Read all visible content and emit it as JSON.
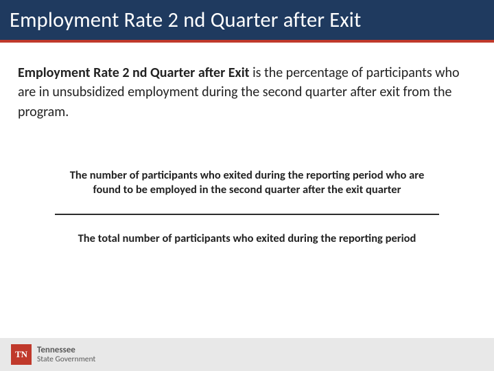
{
  "header": {
    "title": "Employment Rate 2 nd Quarter after Exit",
    "background_color": "#1f3a5f",
    "accent_color": "#c0392b",
    "title_color": "#ffffff",
    "title_fontsize": 30.5
  },
  "definition": {
    "bold_term": "Employment Rate 2 nd Quarter after Exit",
    "rest": " is the percentage of participants who are in unsubsidized employment during the second quarter after exit from the program.",
    "fontsize": 20,
    "text_color": "#222222"
  },
  "fraction": {
    "numerator": "The number of participants who exited during the reporting period who are found to be employed in the second quarter after the exit quarter",
    "denominator": "The total number of participants who exited during the reporting period",
    "line_color": "#2c2c2c",
    "text_color": "#222222",
    "fontsize": 16.5,
    "font_weight": 700
  },
  "footer": {
    "logo_text": "TN",
    "logo_bg": "#c0392b",
    "logo_color": "#ffffff",
    "line1": "Tennessee",
    "line2": "State Government",
    "background_color": "#e8e8e8",
    "text_color": "#5a5a5a"
  }
}
